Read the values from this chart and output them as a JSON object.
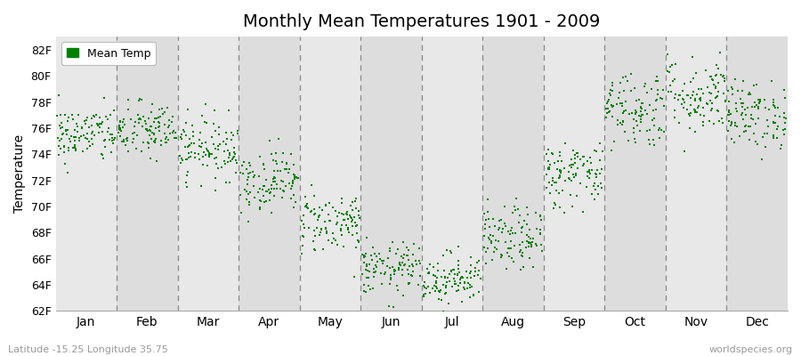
{
  "title": "Monthly Mean Temperatures 1901 - 2009",
  "ylabel": "Temperature",
  "xlabel": "",
  "bottom_left_label": "Latitude -15.25 Longitude 35.75",
  "bottom_right_label": "worldspecies.org",
  "legend_label": "Mean Temp",
  "ylim": [
    62,
    83
  ],
  "yticks": [
    62,
    64,
    66,
    68,
    70,
    72,
    74,
    76,
    78,
    80,
    82
  ],
  "ytick_labels": [
    "62F",
    "64F",
    "66F",
    "68F",
    "70F",
    "72F",
    "74F",
    "76F",
    "78F",
    "80F",
    "82F"
  ],
  "months": [
    "Jan",
    "Feb",
    "Mar",
    "Apr",
    "May",
    "Jun",
    "Jul",
    "Aug",
    "Sep",
    "Oct",
    "Nov",
    "Dec"
  ],
  "dot_color": "#008000",
  "bg_color": "#ffffff",
  "plot_bg_color": "#e8e8e8",
  "stripe_color_alt": "#dddddd",
  "n_years": 109,
  "monthly_means": [
    75.5,
    75.8,
    74.5,
    72.0,
    68.8,
    65.2,
    64.5,
    67.5,
    72.5,
    77.5,
    78.5,
    77.0
  ],
  "monthly_stds": [
    1.1,
    1.1,
    1.2,
    1.2,
    1.2,
    1.0,
    1.0,
    1.2,
    1.3,
    1.5,
    1.5,
    1.3
  ],
  "seed": 42,
  "marker_size": 3
}
